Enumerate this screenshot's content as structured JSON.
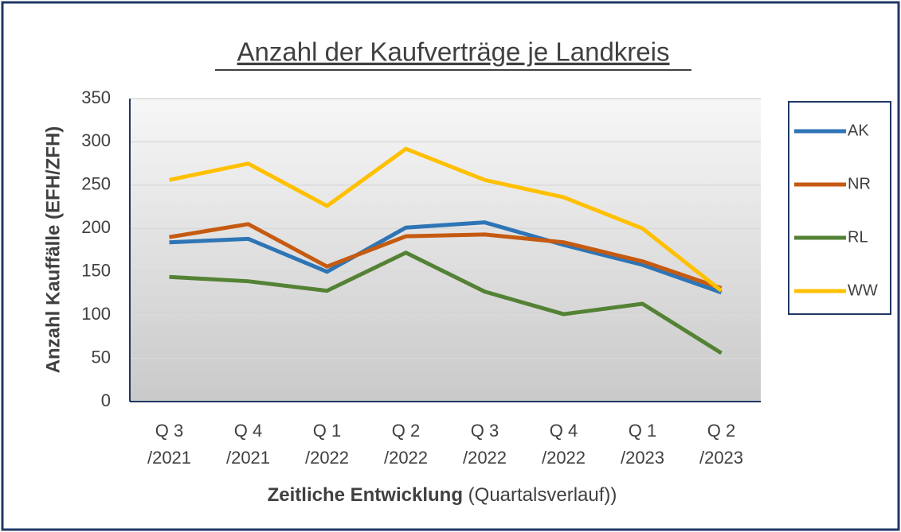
{
  "chart_data": {
    "type": "line",
    "title": "Anzahl der Kaufverträge je Landkreis",
    "y_label": "Anzahl Kauffälle (EFH/ZFH)",
    "x_label": "Zeitliche Entwicklung",
    "x_label_note": "(Quartalsverlauf))",
    "categories": [
      "Q 3\n/2021",
      "Q 4\n/2021",
      "Q 1\n/2022",
      "Q 2\n/2022",
      "Q 3\n/2022",
      "Q 4\n/2022",
      "Q 1\n/2023",
      "Q 2\n/2023"
    ],
    "series": [
      {
        "name": "AK",
        "color": "#2e75b6",
        "values": [
          184,
          188,
          150,
          201,
          207,
          181,
          158,
          126
        ]
      },
      {
        "name": "NR",
        "color": "#c55a11",
        "values": [
          190,
          205,
          156,
          191,
          193,
          184,
          162,
          131
        ]
      },
      {
        "name": "RL",
        "color": "#548235",
        "values": [
          144,
          139,
          128,
          172,
          127,
          101,
          113,
          56
        ]
      },
      {
        "name": "WW",
        "color": "#ffc000",
        "values": [
          256,
          275,
          226,
          292,
          256,
          236,
          200,
          128
        ]
      }
    ],
    "ylim": [
      0,
      350
    ],
    "yticks": [
      0,
      50,
      100,
      150,
      200,
      250,
      300,
      350
    ],
    "grid": true,
    "legend": "right"
  }
}
